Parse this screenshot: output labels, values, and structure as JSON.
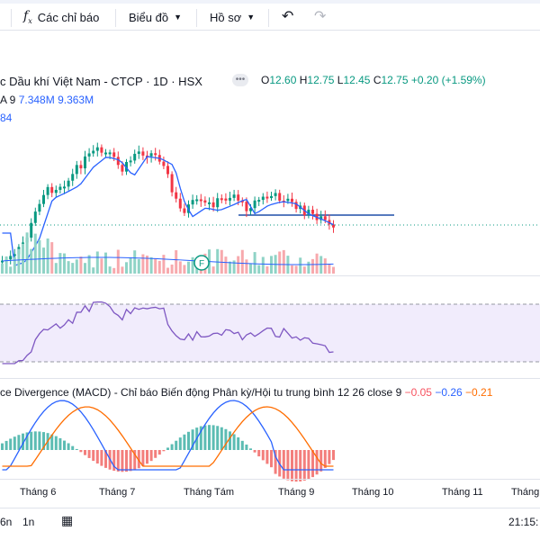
{
  "toolbar": {
    "indicators_label": "Các chỉ báo",
    "chart_type_label": "Biểu đồ",
    "profile_label": "Hồ sơ",
    "fx_icon": "fx-icon",
    "undo_icon": "undo-icon",
    "redo_icon": "redo-icon"
  },
  "legend": {
    "symbol_title": "c Dầu khí Việt Nam - CTCP · 1D · HSX",
    "ohlc": {
      "o_label": "O",
      "o": "12.60",
      "h_label": "H",
      "h": "12.75",
      "l_label": "L",
      "l": "12.45",
      "c_label": "C",
      "c": "12.75",
      "change": "+0.20 (+1.59%)"
    },
    "volume_label": "A 9",
    "volume_value_1": "7.348M",
    "volume_value_2": "9.363M",
    "ma_value": "84"
  },
  "macd": {
    "label": "ce Divergence (MACD) - Chỉ báo Biến động Phân kỳ/Hội tu trung bình 12 26 close 9",
    "v1": "−0.05",
    "v2": "−0.26",
    "v3": "−0.21"
  },
  "xaxis": [
    "Tháng 6",
    "Tháng 7",
    "Tháng Tám",
    "Tháng 9",
    "Tháng 10",
    "Tháng 11",
    "Tháng"
  ],
  "bottom": {
    "range_a": "6n",
    "range_b": "1n",
    "time": "21:15:"
  },
  "colors": {
    "up": "#089981",
    "down": "#f23645",
    "ma": "#2962ff",
    "macd_signal": "#ff6d00",
    "rsi": "#7e57c2"
  }
}
